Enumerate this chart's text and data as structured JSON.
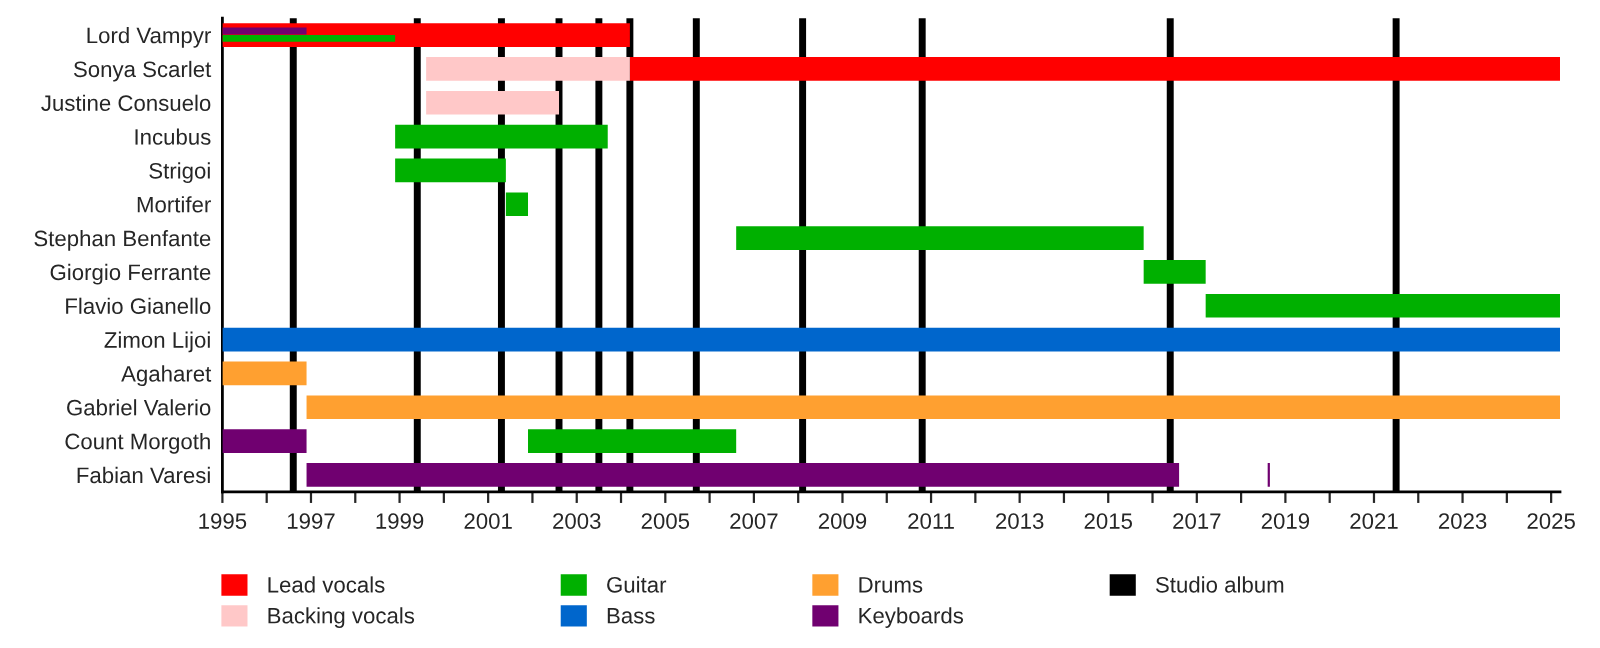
{
  "chart_data": {
    "type": "bar",
    "orientation": "horizontal",
    "categories": [
      "Lord Vampyr",
      "Sonya Scarlet",
      "Justine Consuelo",
      "Incubus",
      "Strigoi",
      "Mortifer",
      "Stephan Benfante",
      "Giorgio Ferrante",
      "Flavio Gianello",
      "Zimon Lijoi",
      "Agaharet",
      "Gabriel Valerio",
      "Count Morgoth",
      "Fabian Varesi"
    ],
    "series": [
      {
        "name": "Lead vocals",
        "color": "#ff0000",
        "base": [
          1995,
          2004.2,
          null,
          null,
          null,
          null,
          null,
          null,
          null,
          null,
          null,
          null,
          null,
          null
        ],
        "values": [
          9.2,
          21.0,
          null,
          null,
          null,
          null,
          null,
          null,
          null,
          null,
          null,
          null,
          null,
          null
        ]
      },
      {
        "name": "Backing vocals",
        "color": "#ffc8c8",
        "base": [
          null,
          1999.6,
          1999.6,
          null,
          null,
          null,
          null,
          null,
          null,
          null,
          null,
          null,
          null,
          null
        ],
        "values": [
          null,
          4.6,
          3.0,
          null,
          null,
          null,
          null,
          null,
          null,
          null,
          null,
          null,
          null,
          null
        ]
      },
      {
        "name": "Guitar",
        "color": "#00b000",
        "base": [
          1995,
          null,
          null,
          1998.9,
          1998.9,
          2001.4,
          2006.6,
          2015.8,
          2017.2,
          null,
          null,
          null,
          2001.9,
          null
        ],
        "values": [
          3.9,
          null,
          null,
          4.8,
          2.5,
          0.5,
          9.2,
          1.4,
          8.0,
          null,
          null,
          null,
          4.7,
          null
        ]
      },
      {
        "name": "Bass",
        "color": "#0066cc",
        "base": [
          null,
          null,
          null,
          null,
          null,
          null,
          null,
          null,
          null,
          1995,
          null,
          null,
          null,
          null
        ],
        "values": [
          null,
          null,
          null,
          null,
          null,
          null,
          null,
          null,
          null,
          30.2,
          null,
          null,
          null,
          null
        ]
      },
      {
        "name": "Drums",
        "color": "#ffa030",
        "base": [
          null,
          null,
          null,
          null,
          null,
          null,
          null,
          null,
          null,
          null,
          1995,
          1996.9,
          null,
          null
        ],
        "values": [
          null,
          null,
          null,
          null,
          null,
          null,
          null,
          null,
          null,
          null,
          1.9,
          28.3,
          null,
          null
        ]
      },
      {
        "name": "Keyboards",
        "color": "#700070",
        "base": [
          1995,
          null,
          null,
          null,
          null,
          null,
          null,
          null,
          null,
          null,
          null,
          null,
          1995,
          1996.9
        ],
        "values": [
          1.9,
          null,
          null,
          null,
          null,
          null,
          null,
          null,
          null,
          null,
          null,
          null,
          1.9,
          19.7
        ]
      },
      {
        "color": "#700070",
        "base": [
          null,
          null,
          null,
          null,
          null,
          null,
          null,
          null,
          null,
          null,
          null,
          null,
          null,
          2018.6
        ],
        "values": [
          null,
          null,
          null,
          null,
          null,
          null,
          null,
          null,
          null,
          null,
          null,
          null,
          null,
          0.05
        ]
      }
    ],
    "ref_lines": [
      {
        "axis": "x",
        "value": 1996.6,
        "label": "Studio album",
        "color": "#000000"
      },
      {
        "axis": "x",
        "value": 1999.4,
        "color": "#000000"
      },
      {
        "axis": "x",
        "value": 2001.3,
        "color": "#000000"
      },
      {
        "axis": "x",
        "value": 2002.6,
        "color": "#000000"
      },
      {
        "axis": "x",
        "value": 2003.5,
        "color": "#000000"
      },
      {
        "axis": "x",
        "value": 2004.2,
        "color": "#000000"
      },
      {
        "axis": "x",
        "value": 2005.7,
        "color": "#000000"
      },
      {
        "axis": "x",
        "value": 2008.1,
        "color": "#000000"
      },
      {
        "axis": "x",
        "value": 2010.8,
        "color": "#000000"
      },
      {
        "axis": "x",
        "value": 2016.4,
        "color": "#000000"
      },
      {
        "axis": "x",
        "value": 2021.5,
        "color": "#000000"
      }
    ],
    "xlim": [
      1995,
      2025.2
    ],
    "xticks": [
      1995,
      {
        "value": 1996,
        "label": null
      },
      1997,
      {
        "value": 1998,
        "label": null
      },
      1999,
      {
        "value": 2000,
        "label": null
      },
      2001,
      {
        "value": 2002,
        "label": null
      },
      2003,
      {
        "value": 2004,
        "label": null
      },
      2005,
      {
        "value": 2006,
        "label": null
      },
      2007,
      {
        "value": 2008,
        "label": null
      },
      2009,
      {
        "value": 2010,
        "label": null
      },
      2011,
      {
        "value": 2012,
        "label": null
      },
      2013,
      {
        "value": 2014,
        "label": null
      },
      2015,
      {
        "value": 2016,
        "label": null
      },
      2017,
      {
        "value": 2018,
        "label": null
      },
      2019,
      {
        "value": 2020,
        "label": null
      },
      2021,
      {
        "value": 2022,
        "label": null
      },
      2023,
      {
        "value": 2024,
        "label": null
      },
      2025
    ],
    "grid": false,
    "legend": "bottom"
  }
}
